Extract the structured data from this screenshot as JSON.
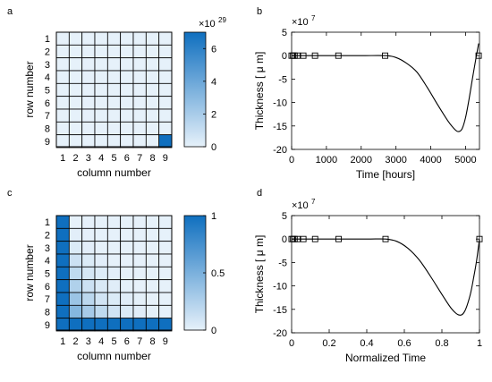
{
  "chart_data": [
    {
      "panel": "a",
      "type": "heatmap",
      "xlabel": "column number",
      "ylabel": "row number",
      "x_ticks": [
        "1",
        "2",
        "3",
        "4",
        "5",
        "6",
        "7",
        "8",
        "9"
      ],
      "y_ticks": [
        "1",
        "2",
        "3",
        "4",
        "5",
        "6",
        "7",
        "8",
        "9"
      ],
      "colorbar": {
        "ticks": [
          "0",
          "2",
          "4",
          "6"
        ],
        "tick_values": [
          0,
          2,
          4,
          6
        ],
        "max": 7,
        "exponent": "×10",
        "exponent_power": "29"
      },
      "matrix": [
        [
          0,
          0,
          0,
          0,
          0,
          0,
          0,
          0,
          0
        ],
        [
          0,
          0,
          0,
          0,
          0,
          0,
          0,
          0,
          0
        ],
        [
          0,
          0,
          0,
          0,
          0,
          0,
          0,
          0,
          0
        ],
        [
          0,
          0,
          0,
          0,
          0,
          0,
          0,
          0,
          0
        ],
        [
          0,
          0,
          0,
          0,
          0,
          0,
          0,
          0,
          0
        ],
        [
          0,
          0,
          0,
          0,
          0,
          0,
          0,
          0,
          0
        ],
        [
          0,
          0,
          0,
          0,
          0,
          0,
          0,
          0,
          0
        ],
        [
          0,
          0,
          0,
          0,
          0,
          0,
          0,
          0,
          0
        ],
        [
          0,
          0,
          0,
          0,
          0,
          0,
          0,
          0,
          7
        ]
      ],
      "colors": {
        "low": "#e6f1fa",
        "high": "#0f6fbf"
      }
    },
    {
      "panel": "b",
      "type": "line",
      "xlabel": "Time [hours]",
      "ylabel": "Thickness [ μ m]",
      "exponent": "×10",
      "exponent_power": "7",
      "xlim": [
        0,
        5400
      ],
      "ylim": [
        -20,
        5
      ],
      "x_ticks": [
        0,
        1000,
        2000,
        3000,
        4000,
        5000
      ],
      "y_ticks": [
        5,
        0,
        -5,
        -10,
        -15,
        -20
      ],
      "markers_x": [
        0,
        42,
        84,
        168,
        336,
        672,
        1344,
        2688,
        5376
      ],
      "markers_y": [
        0,
        0,
        0,
        0,
        0,
        0,
        0,
        0,
        0
      ],
      "curve": [
        [
          0,
          0
        ],
        [
          1000,
          0
        ],
        [
          2000,
          0
        ],
        [
          2688,
          0
        ],
        [
          3000,
          -0.4
        ],
        [
          3300,
          -1.6
        ],
        [
          3600,
          -3.5
        ],
        [
          3900,
          -6.8
        ],
        [
          4200,
          -10.5
        ],
        [
          4500,
          -14.0
        ],
        [
          4700,
          -15.8
        ],
        [
          4800,
          -16.2
        ],
        [
          4900,
          -15.6
        ],
        [
          5000,
          -13.2
        ],
        [
          5100,
          -9.3
        ],
        [
          5200,
          -4.8
        ],
        [
          5300,
          -0.5
        ],
        [
          5376,
          2.6
        ]
      ]
    },
    {
      "panel": "c",
      "type": "heatmap",
      "xlabel": "column number",
      "ylabel": "row number",
      "x_ticks": [
        "1",
        "2",
        "3",
        "4",
        "5",
        "6",
        "7",
        "8",
        "9"
      ],
      "y_ticks": [
        "1",
        "2",
        "3",
        "4",
        "5",
        "6",
        "7",
        "8",
        "9"
      ],
      "colorbar": {
        "ticks": [
          "0",
          "0.5",
          "1"
        ],
        "tick_values": [
          0,
          0.5,
          1
        ],
        "max": 1
      },
      "matrix": [
        [
          1,
          0,
          0,
          0,
          0,
          0,
          0,
          0,
          0
        ],
        [
          1,
          0.02,
          0,
          0,
          0,
          0,
          0,
          0,
          0
        ],
        [
          1,
          0.05,
          0.02,
          0,
          0,
          0,
          0,
          0,
          0
        ],
        [
          1,
          0.12,
          0.05,
          0.02,
          0,
          0,
          0,
          0,
          0
        ],
        [
          1,
          0.18,
          0.08,
          0.04,
          0.02,
          0,
          0,
          0,
          0
        ],
        [
          1,
          0.25,
          0.12,
          0.06,
          0.03,
          0.01,
          0,
          0,
          0
        ],
        [
          1,
          0.35,
          0.2,
          0.1,
          0.05,
          0.03,
          0.01,
          0,
          0
        ],
        [
          1,
          0.45,
          0.3,
          0.18,
          0.1,
          0.05,
          0.03,
          0.01,
          0
        ],
        [
          1,
          1,
          1,
          1,
          1,
          1,
          1,
          1,
          1
        ]
      ],
      "colors": {
        "low": "#e6f1fa",
        "high": "#0f6fbf"
      }
    },
    {
      "panel": "d",
      "type": "line",
      "xlabel": "Normalized Time",
      "ylabel": "Thickness [ μ m]",
      "exponent": "×10",
      "exponent_power": "7",
      "xlim": [
        0,
        1
      ],
      "ylim": [
        -20,
        5
      ],
      "x_ticks": [
        0,
        0.2,
        0.4,
        0.6,
        0.8,
        1
      ],
      "y_ticks": [
        5,
        0,
        -5,
        -10,
        -15,
        -20
      ],
      "markers_x": [
        0,
        0.0078,
        0.0156,
        0.03125,
        0.0625,
        0.125,
        0.25,
        0.5,
        1
      ],
      "markers_y": [
        0,
        0,
        0,
        0,
        0,
        0,
        0,
        0,
        0
      ],
      "curve": [
        [
          0,
          0
        ],
        [
          0.2,
          0
        ],
        [
          0.4,
          0
        ],
        [
          0.5,
          0
        ],
        [
          0.56,
          -0.5
        ],
        [
          0.62,
          -2.0
        ],
        [
          0.68,
          -4.5
        ],
        [
          0.74,
          -8.0
        ],
        [
          0.8,
          -11.8
        ],
        [
          0.85,
          -14.8
        ],
        [
          0.89,
          -16.2
        ],
        [
          0.92,
          -15.5
        ],
        [
          0.95,
          -12.0
        ],
        [
          0.97,
          -8.0
        ],
        [
          0.985,
          -4.5
        ],
        [
          1,
          0
        ]
      ]
    }
  ]
}
